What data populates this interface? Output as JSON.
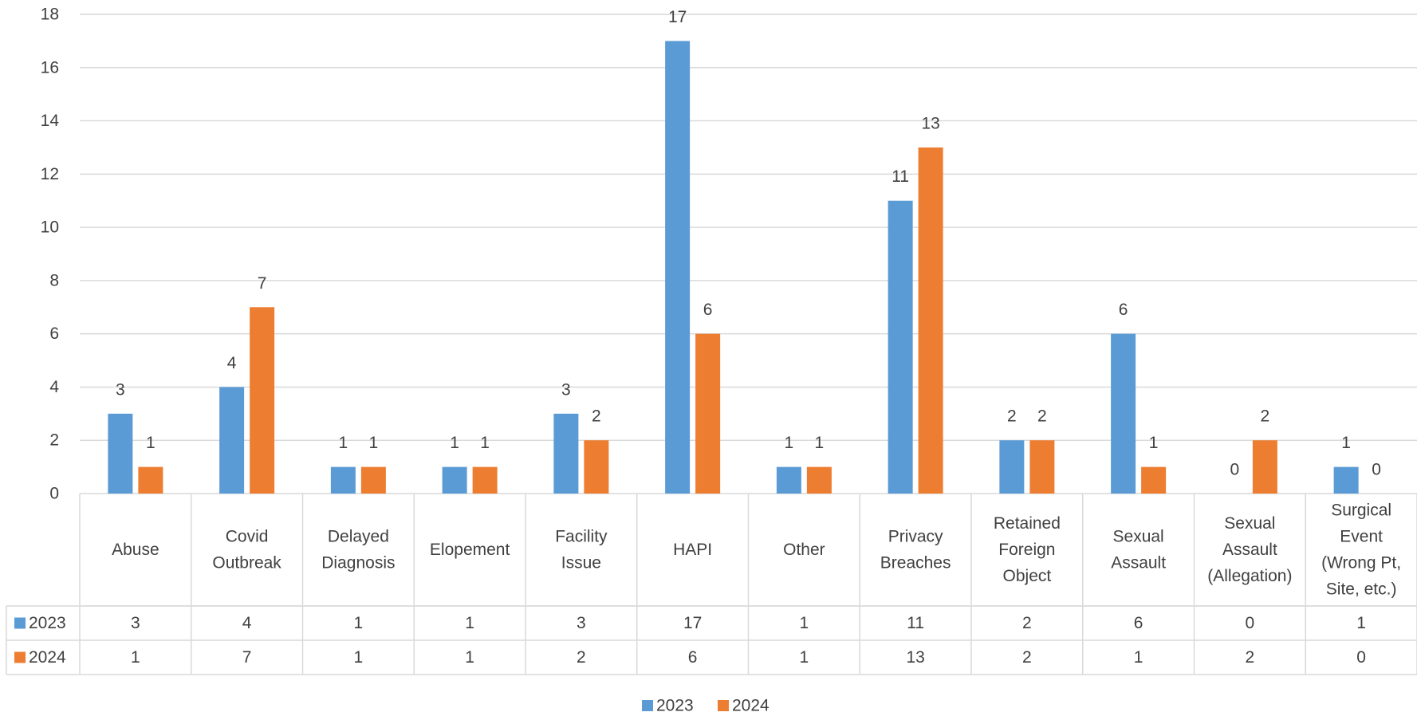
{
  "chart_data": {
    "type": "bar",
    "categories": [
      [
        "Abuse"
      ],
      [
        "Covid",
        "Outbreak"
      ],
      [
        "Delayed",
        "Diagnosis"
      ],
      [
        "Elopement"
      ],
      [
        "Facility",
        "Issue"
      ],
      [
        "HAPI"
      ],
      [
        "Other"
      ],
      [
        "Privacy",
        "Breaches"
      ],
      [
        "Retained",
        "Foreign",
        "Object"
      ],
      [
        "Sexual",
        "Assault"
      ],
      [
        "Sexual",
        "Assault",
        "(Allegation)"
      ],
      [
        "Surgical",
        "Event",
        "(Wrong Pt,",
        "Site, etc.)"
      ]
    ],
    "series": [
      {
        "name": "2023",
        "color": "#5B9BD5",
        "values": [
          3,
          4,
          1,
          1,
          3,
          17,
          1,
          11,
          2,
          6,
          0,
          1
        ]
      },
      {
        "name": "2024",
        "color": "#ED7D31",
        "values": [
          1,
          7,
          1,
          1,
          2,
          6,
          1,
          13,
          2,
          1,
          2,
          0
        ]
      }
    ],
    "ylim": [
      0,
      18
    ],
    "yticks": [
      0,
      2,
      4,
      6,
      8,
      10,
      12,
      14,
      16,
      18
    ],
    "grid": true,
    "data_table": true,
    "legend_position": "bottom"
  }
}
